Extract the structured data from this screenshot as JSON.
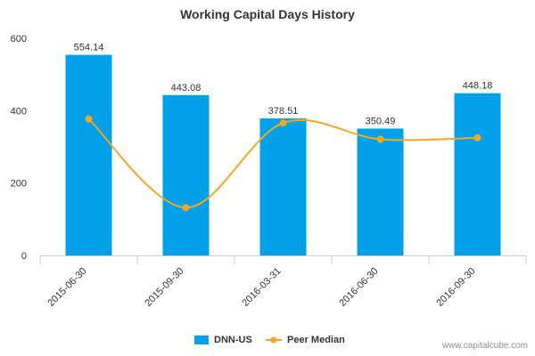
{
  "chart_data": {
    "type": "bar",
    "title": "Working Capital Days History",
    "categories": [
      "2015-06-30",
      "2015-09-30",
      "2016-03-31",
      "2016-06-30",
      "2016-09-30"
    ],
    "series": [
      {
        "name": "DNN-US",
        "kind": "bar",
        "values": [
          554.14,
          443.08,
          378.51,
          350.49,
          448.18
        ],
        "labels": [
          "554.14",
          "443.08",
          "378.51",
          "350.49",
          "448.18"
        ]
      },
      {
        "name": "Peer Median",
        "kind": "line",
        "values": [
          377,
          132,
          366,
          321,
          325
        ]
      }
    ],
    "ylim": [
      0,
      600
    ],
    "yticks": [
      0,
      200,
      400,
      600
    ],
    "xlabel": "",
    "ylabel": "",
    "grid": false,
    "legend": "bottom-center",
    "colors": {
      "bar": "#00A1E8",
      "line": "#F5A623",
      "axis": "#C0D0E0",
      "text": "#333333"
    }
  },
  "watermark": "www.capitalcube.com"
}
